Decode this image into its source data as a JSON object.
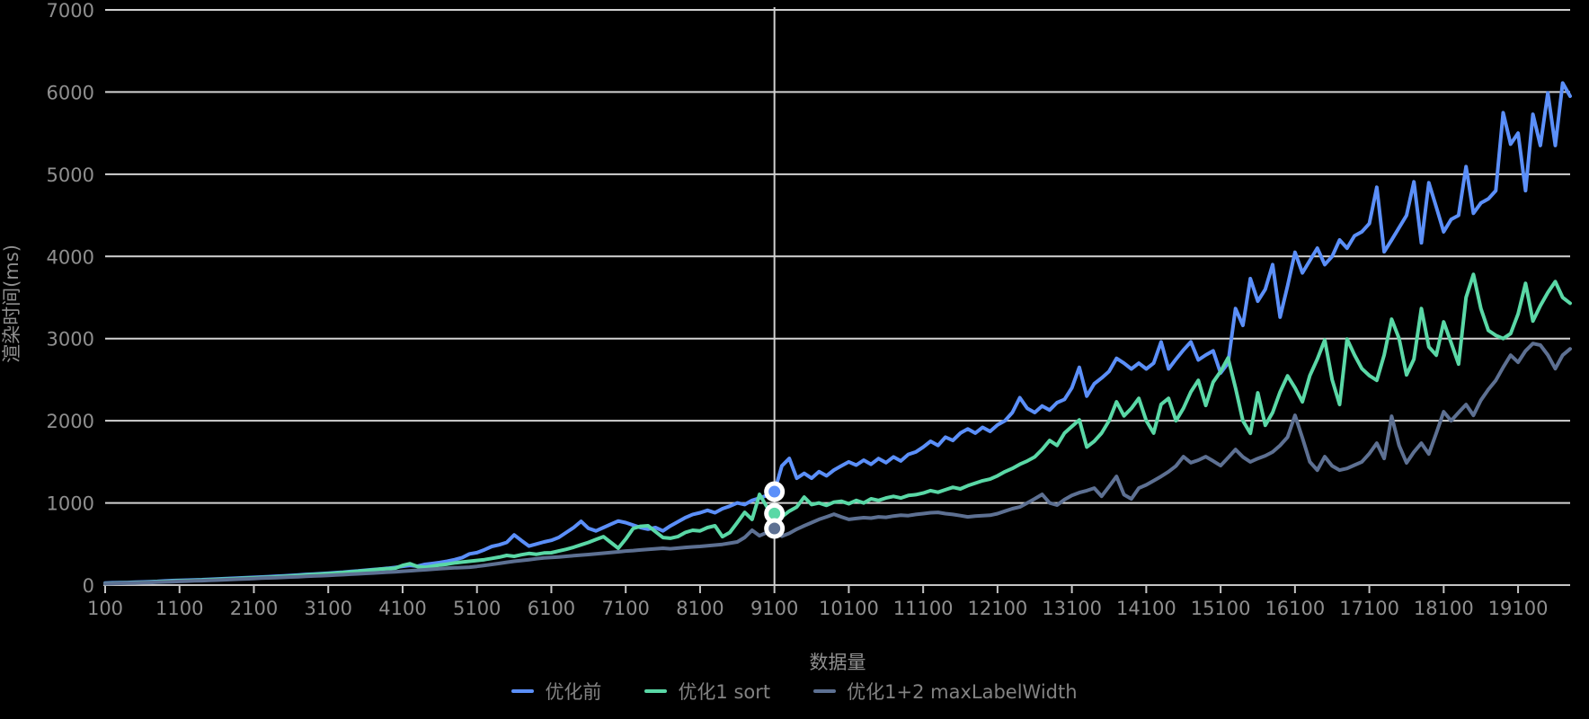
{
  "chart": {
    "background": "#000000",
    "text_color": "#8f8f8f",
    "grid_color": "#d2d2d2",
    "axis_line_color": "#c4c4c4",
    "crosshair": {
      "x": 9100,
      "color": "#cfcfcf"
    },
    "y_axis": {
      "title": "渲染时间(ms)",
      "max": 7000,
      "tick_labels": [
        0,
        1000,
        2000,
        3000,
        4000,
        5000,
        6000,
        7000
      ]
    },
    "x_axis": {
      "title": "数据量",
      "tick_labels": [
        100,
        1100,
        2100,
        3100,
        4100,
        5100,
        6100,
        7100,
        8100,
        9100,
        10100,
        11100,
        12100,
        13100,
        14100,
        15100,
        16100,
        17100,
        18100,
        19100
      ]
    },
    "tooltip_markers": [
      {
        "series": "优化前",
        "x": 9100,
        "value": 1137
      },
      {
        "series": "优化1 sort",
        "x": 9100,
        "value": 871
      },
      {
        "series": "优化1+2 maxLabelWidth",
        "x": 9100,
        "value": 689
      }
    ]
  },
  "chart_data": {
    "type": "line",
    "title": "",
    "xlabel": "数据量",
    "ylabel": "渲染时间(ms)",
    "ylim": [
      0,
      7000
    ],
    "grid": true,
    "legend_position": "bottom",
    "x_start": 100,
    "x_step": 100,
    "x_end": 19800,
    "series": [
      {
        "name": "优化前",
        "color": "#5B8FF9",
        "values": [
          25,
          28,
          30,
          32,
          35,
          38,
          42,
          45,
          50,
          55,
          58,
          60,
          63,
          66,
          70,
          74,
          78,
          82,
          86,
          90,
          94,
          98,
          103,
          108,
          113,
          118,
          124,
          130,
          135,
          140,
          146,
          152,
          158,
          165,
          172,
          180,
          188,
          196,
          205,
          215,
          228,
          240,
          230,
          252,
          262,
          275,
          290,
          310,
          335,
          380,
          395,
          430,
          470,
          490,
          520,
          610,
          540,
          475,
          500,
          525,
          545,
          580,
          640,
          700,
          776,
          690,
          660,
          700,
          740,
          780,
          760,
          730,
          700,
          680,
          700,
          660,
          720,
          770,
          820,
          860,
          880,
          910,
          880,
          930,
          960,
          1000,
          980,
          1030,
          1060,
          1090,
          1137,
          1450,
          1541,
          1300,
          1360,
          1300,
          1380,
          1330,
          1400,
          1450,
          1500,
          1460,
          1520,
          1470,
          1540,
          1490,
          1560,
          1510,
          1590,
          1620,
          1680,
          1750,
          1700,
          1800,
          1760,
          1850,
          1900,
          1850,
          1920,
          1870,
          1950,
          2000,
          2100,
          2280,
          2150,
          2100,
          2180,
          2130,
          2220,
          2260,
          2400,
          2650,
          2300,
          2450,
          2520,
          2600,
          2760,
          2700,
          2630,
          2700,
          2630,
          2700,
          2960,
          2630,
          2750,
          2860,
          2960,
          2740,
          2800,
          2850,
          2580,
          2700,
          3365,
          3160,
          3730,
          3455,
          3600,
          3900,
          3260,
          3640,
          4050,
          3800,
          3950,
          4100,
          3900,
          4000,
          4200,
          4100,
          4250,
          4300,
          4400,
          4842,
          4056,
          4200,
          4350,
          4500,
          4908,
          4165,
          4897,
          4600,
          4300,
          4450,
          4500,
          5093,
          4525,
          4650,
          4700,
          4800,
          5749,
          5366,
          5500,
          4800,
          5730,
          5350,
          5990,
          5350,
          6110,
          5950
        ]
      },
      {
        "name": "优化1 sort",
        "color": "#5AD8A6",
        "values": [
          20,
          22,
          25,
          27,
          30,
          33,
          36,
          40,
          44,
          48,
          51,
          54,
          57,
          60,
          64,
          68,
          72,
          76,
          80,
          84,
          88,
          92,
          96,
          100,
          105,
          110,
          116,
          122,
          128,
          134,
          140,
          146,
          153,
          160,
          168,
          176,
          185,
          194,
          200,
          205,
          240,
          260,
          225,
          215,
          230,
          245,
          255,
          270,
          280,
          290,
          300,
          310,
          325,
          340,
          361,
          350,
          370,
          385,
          375,
          390,
          394,
          415,
          435,
          460,
          490,
          520,
          555,
          590,
          520,
          448,
          560,
          689,
          715,
          722,
          650,
          579,
          570,
          590,
          640,
          667,
          660,
          700,
          722,
          590,
          640,
          760,
          885,
          800,
          1104,
          950,
          871,
          831,
          900,
          950,
          1071,
          980,
          1000,
          970,
          1010,
          1020,
          990,
          1030,
          1000,
          1050,
          1030,
          1060,
          1080,
          1060,
          1090,
          1100,
          1120,
          1150,
          1130,
          1160,
          1190,
          1170,
          1210,
          1240,
          1270,
          1290,
          1330,
          1380,
          1420,
          1470,
          1510,
          1560,
          1650,
          1760,
          1700,
          1850,
          1930,
          2010,
          1680,
          1750,
          1850,
          2000,
          2230,
          2060,
          2150,
          2273,
          2000,
          1850,
          2200,
          2273,
          2000,
          2150,
          2350,
          2492,
          2186,
          2470,
          2600,
          2765,
          2400,
          2000,
          1847,
          2339,
          1945,
          2100,
          2350,
          2546,
          2400,
          2230,
          2550,
          2750,
          2984,
          2500,
          2197,
          2995,
          2800,
          2634,
          2550,
          2492,
          2800,
          3235,
          3000,
          2558,
          2750,
          3366,
          2900,
          2798,
          3202,
          2950,
          2689,
          3500,
          3781,
          3366,
          3100,
          3038,
          3000,
          3060,
          3300,
          3672,
          3213,
          3400,
          3560,
          3694,
          3500,
          3430
        ]
      },
      {
        "name": "优化1+2 maxLabelWidth",
        "color": "#5D7092",
        "values": [
          18,
          20,
          22,
          24,
          26,
          29,
          32,
          35,
          38,
          42,
          45,
          48,
          51,
          54,
          57,
          60,
          64,
          68,
          72,
          76,
          80,
          84,
          87,
          90,
          94,
          98,
          102,
          106,
          110,
          114,
          118,
          122,
          127,
          132,
          137,
          142,
          147,
          152,
          157,
          162,
          168,
          174,
          180,
          186,
          192,
          199,
          206,
          210,
          213,
          218,
          228,
          240,
          252,
          264,
          278,
          290,
          300,
          310,
          320,
          330,
          336,
          342,
          350,
          358,
          365,
          372,
          380,
          388,
          396,
          405,
          415,
          420,
          428,
          435,
          442,
          448,
          442,
          450,
          458,
          465,
          470,
          478,
          487,
          495,
          510,
          525,
          580,
          667,
          600,
          640,
          689,
          595,
          630,
          680,
          722,
          760,
          800,
          830,
          863,
          830,
          800,
          810,
          820,
          815,
          830,
          825,
          840,
          850,
          845,
          860,
          870,
          880,
          885,
          870,
          860,
          845,
          830,
          840,
          845,
          850,
          870,
          900,
          930,
          950,
          1000,
          1050,
          1104,
          1000,
          973,
          1040,
          1090,
          1126,
          1150,
          1180,
          1082,
          1200,
          1322,
          1100,
          1049,
          1180,
          1220,
          1270,
          1322,
          1380,
          1450,
          1563,
          1490,
          1520,
          1563,
          1510,
          1454,
          1550,
          1650,
          1560,
          1500,
          1540,
          1574,
          1620,
          1700,
          1800,
          2066,
          1793,
          1500,
          1399,
          1563,
          1450,
          1399,
          1420,
          1460,
          1500,
          1600,
          1727,
          1541,
          2055,
          1700,
          1487,
          1620,
          1727,
          1596,
          1850,
          2110,
          2000,
          2100,
          2197,
          2066,
          2250,
          2380,
          2492,
          2650,
          2798,
          2711,
          2850,
          2940,
          2920,
          2800,
          2634,
          2798,
          2874
        ]
      }
    ]
  }
}
